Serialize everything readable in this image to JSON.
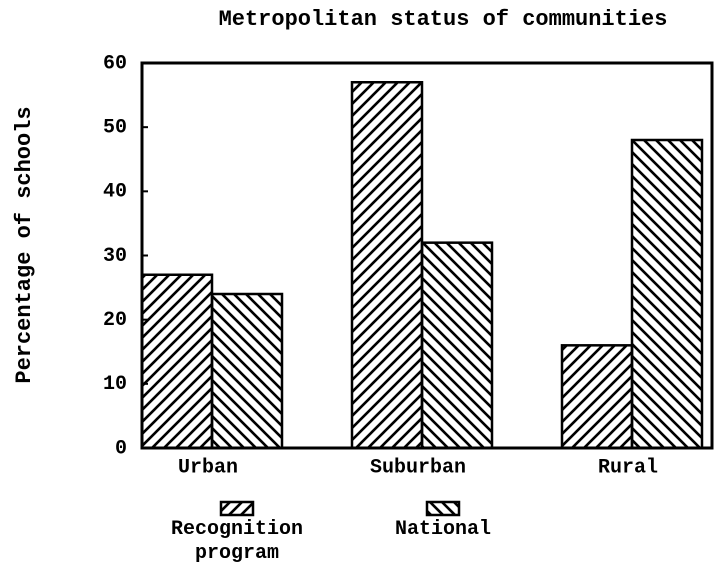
{
  "chart_data": {
    "type": "bar",
    "title": "Metropolitan status of communities",
    "y_label": "Percentage of schools",
    "categories": [
      "Urban",
      "Suburban",
      "Rural"
    ],
    "series": [
      {
        "name": "Recognition program",
        "color": "#000000",
        "hatch": "/",
        "values": [
          27,
          57,
          16
        ]
      },
      {
        "name": "National",
        "color": "#000000",
        "hatch": "\\",
        "values": [
          24,
          32,
          48
        ]
      }
    ],
    "ylim": [
      0,
      60
    ],
    "yticks": [
      0,
      10,
      20,
      30,
      40,
      50,
      60
    ],
    "grid": false
  }
}
